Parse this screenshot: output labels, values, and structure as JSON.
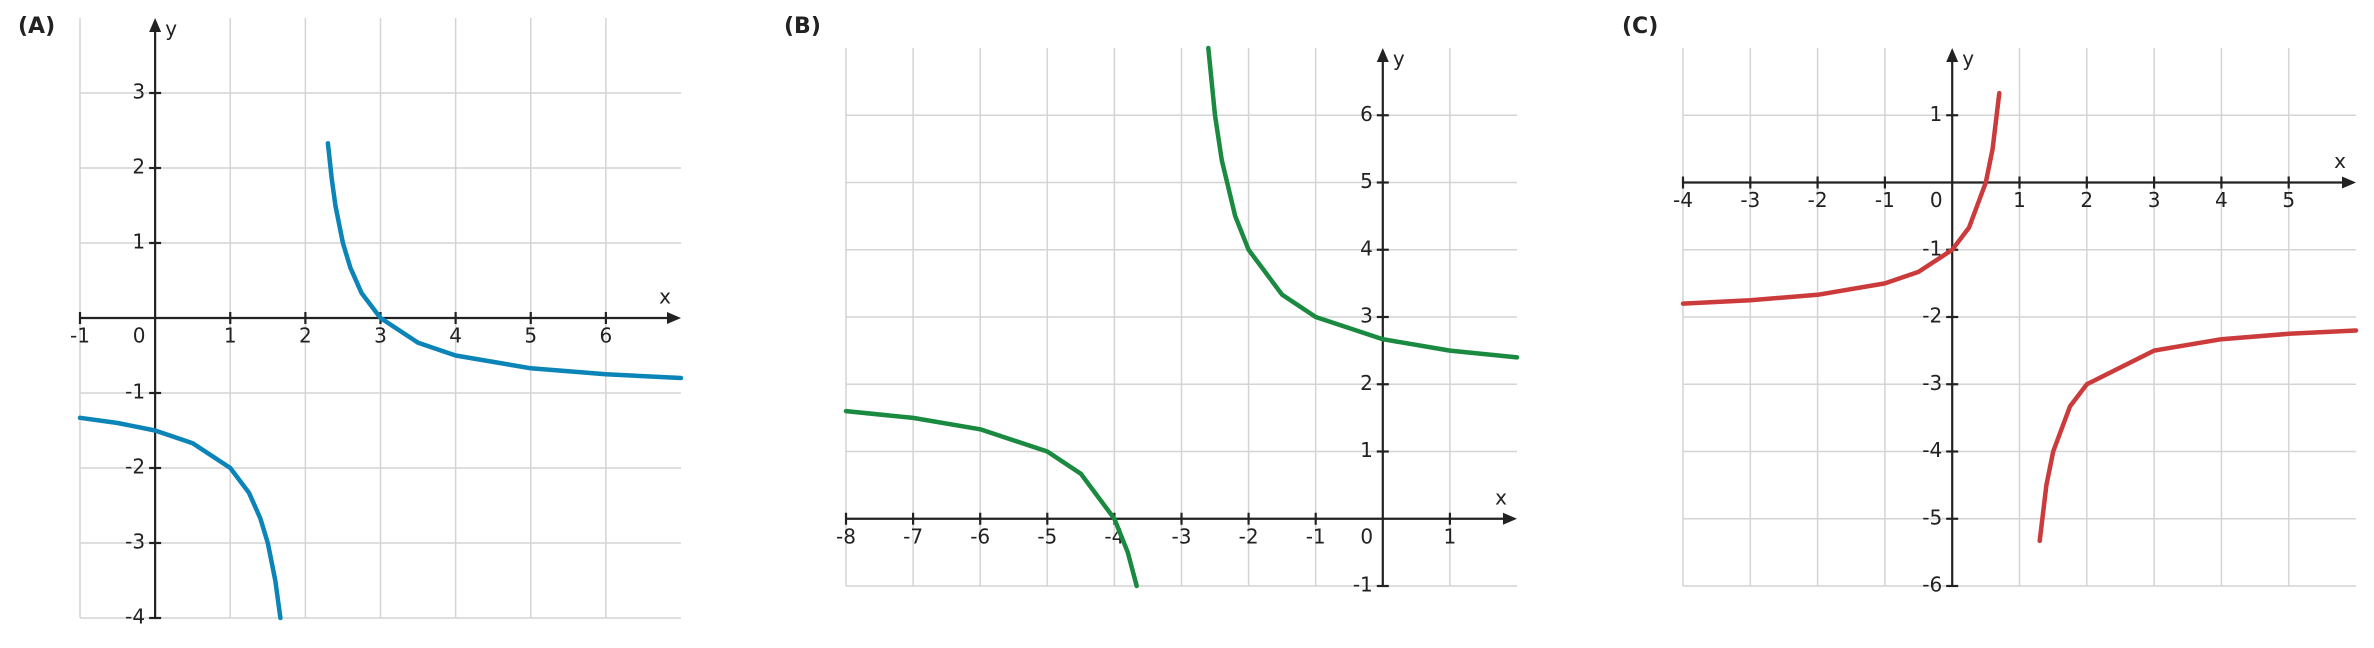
{
  "chart_data": [
    {
      "type": "line",
      "label": "(A)",
      "x_label": "x",
      "y_label": "y",
      "grid": true,
      "xlim": [
        -1,
        7
      ],
      "ylim": [
        -4,
        4
      ],
      "xticks": [
        -1,
        0,
        1,
        2,
        3,
        4,
        5,
        6
      ],
      "yticks": [
        -4,
        -3,
        -2,
        -1,
        1,
        2,
        3
      ],
      "series": [
        {
          "color": "#0b84b8",
          "x": [
            -1,
            -0.5,
            0,
            0.5,
            1,
            1.25,
            1.4,
            1.5,
            1.6,
            1.667,
            2,
            2.3,
            2.35,
            2.4,
            2.5,
            2.6,
            2.75,
            3,
            3.5,
            4,
            5,
            6,
            7
          ],
          "values": [
            -1.33,
            -1.4,
            -1.5,
            -1.67,
            -2,
            -2.33,
            -2.67,
            -3,
            -3.5,
            -4,
            null,
            2.33,
            1.86,
            1.5,
            1,
            0.67,
            0.33,
            0,
            -0.33,
            -0.5,
            -0.67,
            -0.75,
            -0.8
          ]
        }
      ]
    },
    {
      "type": "line",
      "label": "(B)",
      "x_label": "x",
      "y_label": "y",
      "grid": true,
      "xlim": [
        -8,
        2
      ],
      "ylim": [
        -1,
        7
      ],
      "xticks": [
        -8,
        -7,
        -6,
        -5,
        -4,
        -3,
        -2,
        -1,
        0,
        1
      ],
      "yticks": [
        -1,
        1,
        2,
        3,
        4,
        5,
        6
      ],
      "series": [
        {
          "color": "#1a8a40",
          "x": [
            -8,
            -7,
            -6,
            -5,
            -4.5,
            -4,
            -3.8,
            -3.667,
            -3,
            -2.6,
            -2.5,
            -2.4,
            -2.2,
            -2,
            -1.5,
            -1,
            0,
            1,
            2
          ],
          "values": [
            1.6,
            1.5,
            1.33,
            1,
            0.67,
            0,
            -0.5,
            -1,
            null,
            7,
            6,
            5.33,
            4.5,
            4,
            3.33,
            3,
            2.67,
            2.5,
            2.4
          ]
        }
      ]
    },
    {
      "type": "line",
      "label": "(C)",
      "x_label": "x",
      "y_label": "y",
      "grid": true,
      "xlim": [
        -4,
        6
      ],
      "ylim": [
        -6,
        2
      ],
      "xticks": [
        -4,
        -3,
        -2,
        -1,
        0,
        1,
        2,
        3,
        4,
        5
      ],
      "yticks": [
        -6,
        -5,
        -4,
        -3,
        -2,
        -1,
        1
      ],
      "series": [
        {
          "color": "#cc3b3b",
          "x": [
            -4,
            -3,
            -2,
            -1,
            -0.5,
            0,
            0.25,
            0.5,
            0.6,
            0.7,
            1,
            1.3,
            1.4,
            1.5,
            1.75,
            2,
            3,
            4,
            5,
            6
          ],
          "values": [
            -1.8,
            -1.75,
            -1.67,
            -1.5,
            -1.33,
            -1,
            -0.67,
            0,
            0.5,
            1.33,
            null,
            -5.33,
            -4.5,
            -4,
            -3.33,
            -3,
            -2.5,
            -2.33,
            -2.25,
            -2.2
          ]
        }
      ]
    }
  ]
}
